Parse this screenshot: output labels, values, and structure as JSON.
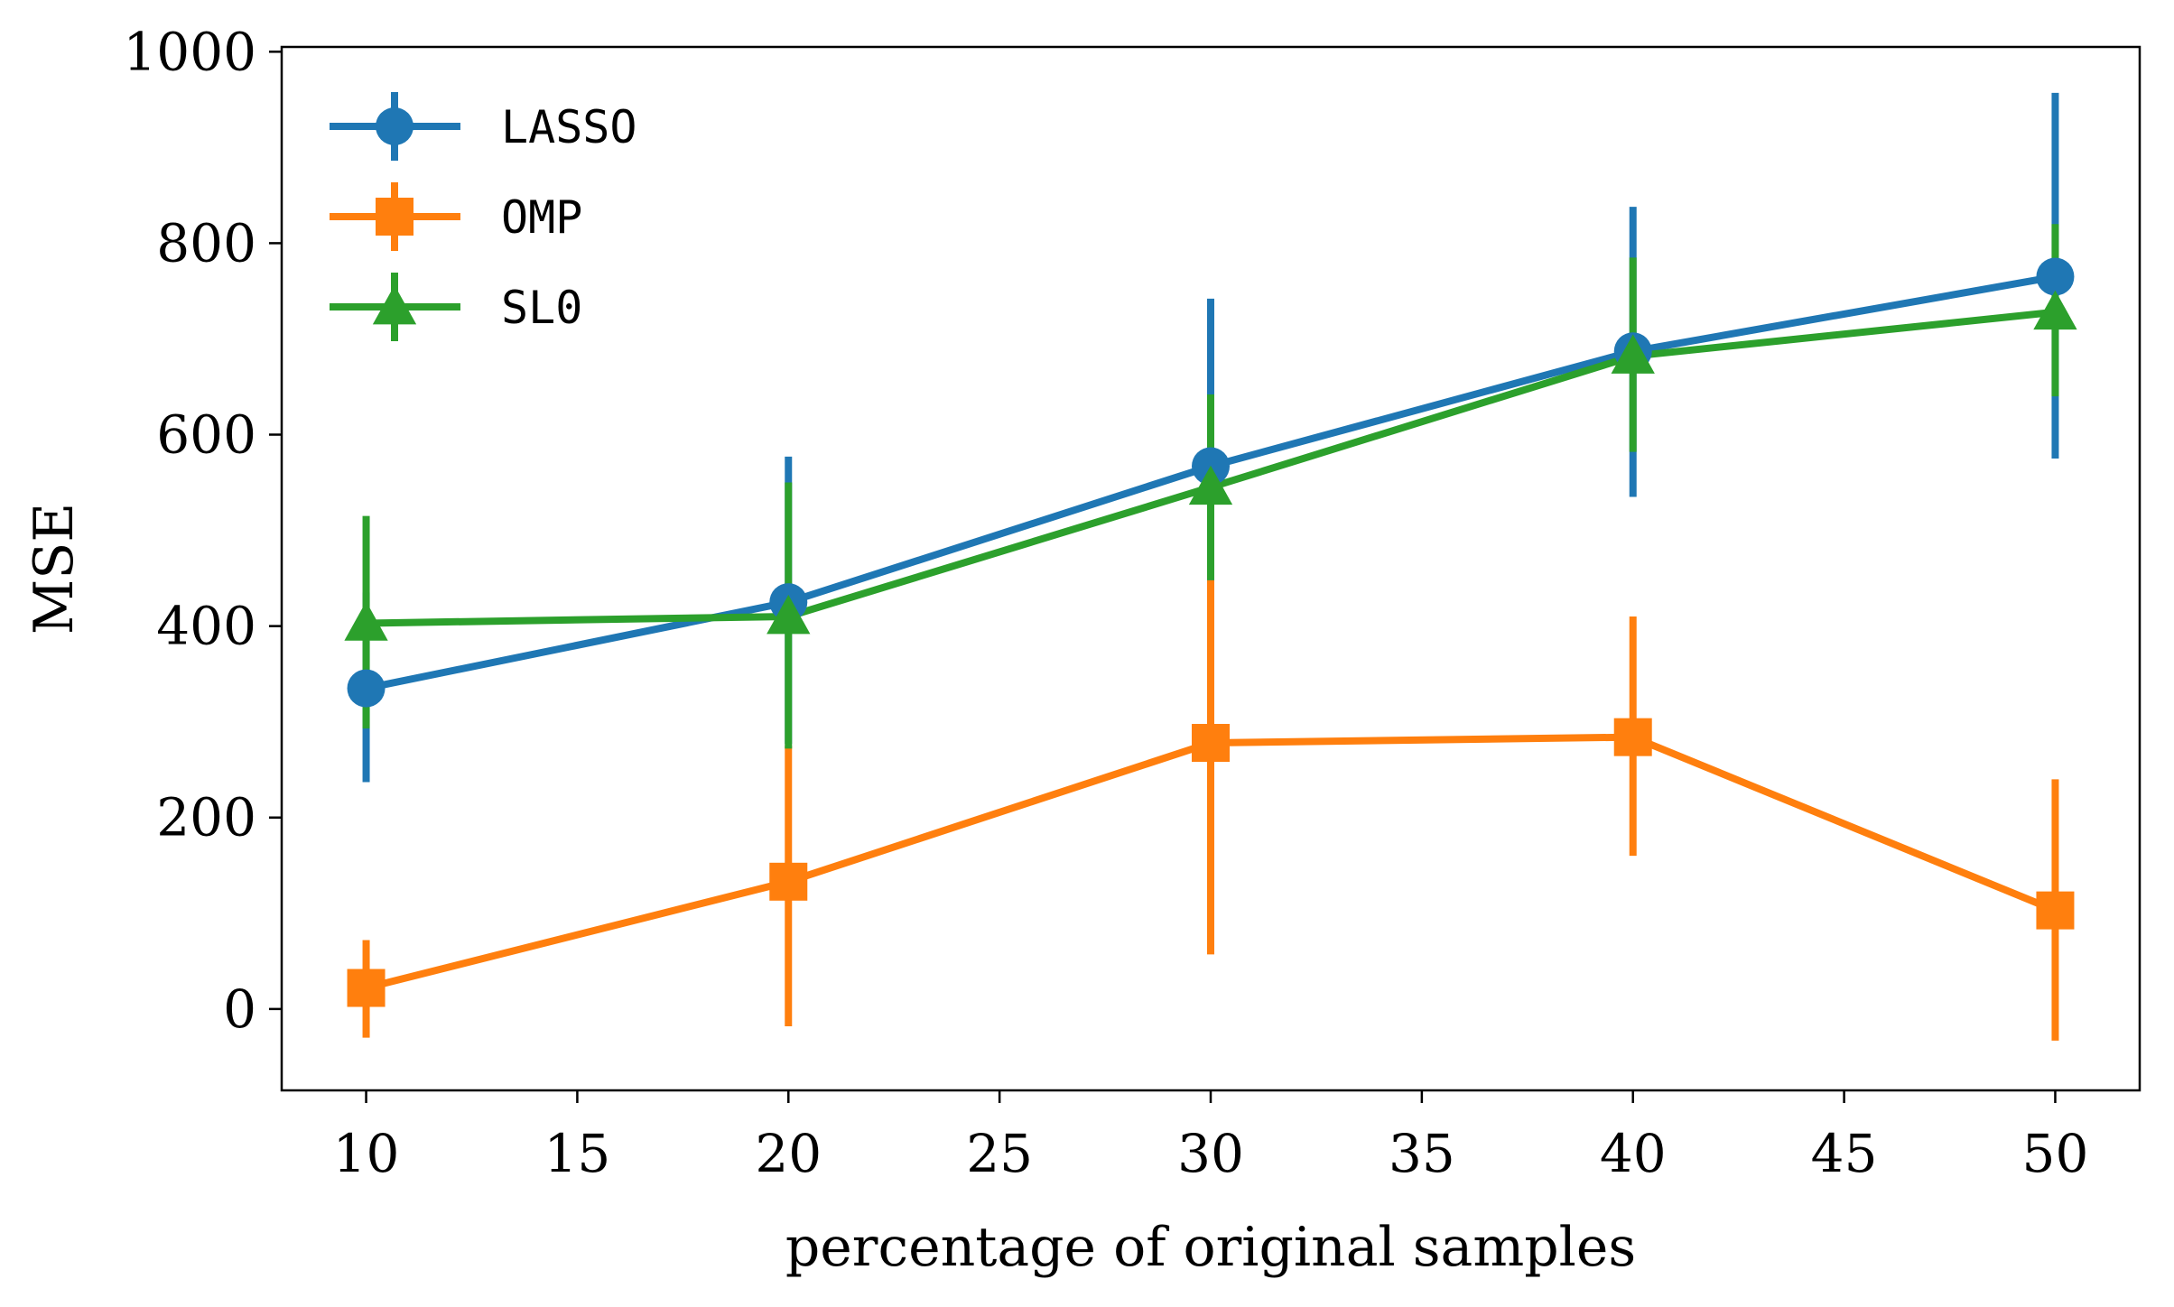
{
  "chart_data": {
    "type": "line",
    "xlabel": "percentage of original samples",
    "ylabel": "MSE",
    "xlim": [
      8,
      52
    ],
    "ylim": [
      -85,
      1005
    ],
    "xticks": [
      10,
      15,
      20,
      25,
      30,
      35,
      40,
      45,
      50
    ],
    "yticks": [
      0,
      200,
      400,
      600,
      800,
      1000
    ],
    "legend_position": "top-left",
    "x": [
      10,
      20,
      30,
      40,
      50
    ],
    "series": [
      {
        "name": "LASSO",
        "color": "#1f77b4",
        "marker": "circle",
        "values": [
          335,
          425,
          567,
          687,
          765
        ],
        "err_low": [
          237,
          277,
          390,
          535,
          575
        ],
        "err_high": [
          435,
          577,
          742,
          838,
          957
        ]
      },
      {
        "name": "OMP",
        "color": "#ff7f0e",
        "marker": "square",
        "values": [
          22,
          133,
          278,
          284,
          103
        ],
        "err_low": [
          -30,
          -18,
          57,
          160,
          -33
        ],
        "err_high": [
          72,
          275,
          448,
          410,
          240
        ]
      },
      {
        "name": "SL0",
        "color": "#2ca02c",
        "marker": "triangle",
        "values": [
          403,
          410,
          545,
          682,
          728
        ],
        "err_low": [
          293,
          272,
          448,
          582,
          640
        ],
        "err_high": [
          515,
          550,
          642,
          785,
          820
        ]
      }
    ]
  }
}
